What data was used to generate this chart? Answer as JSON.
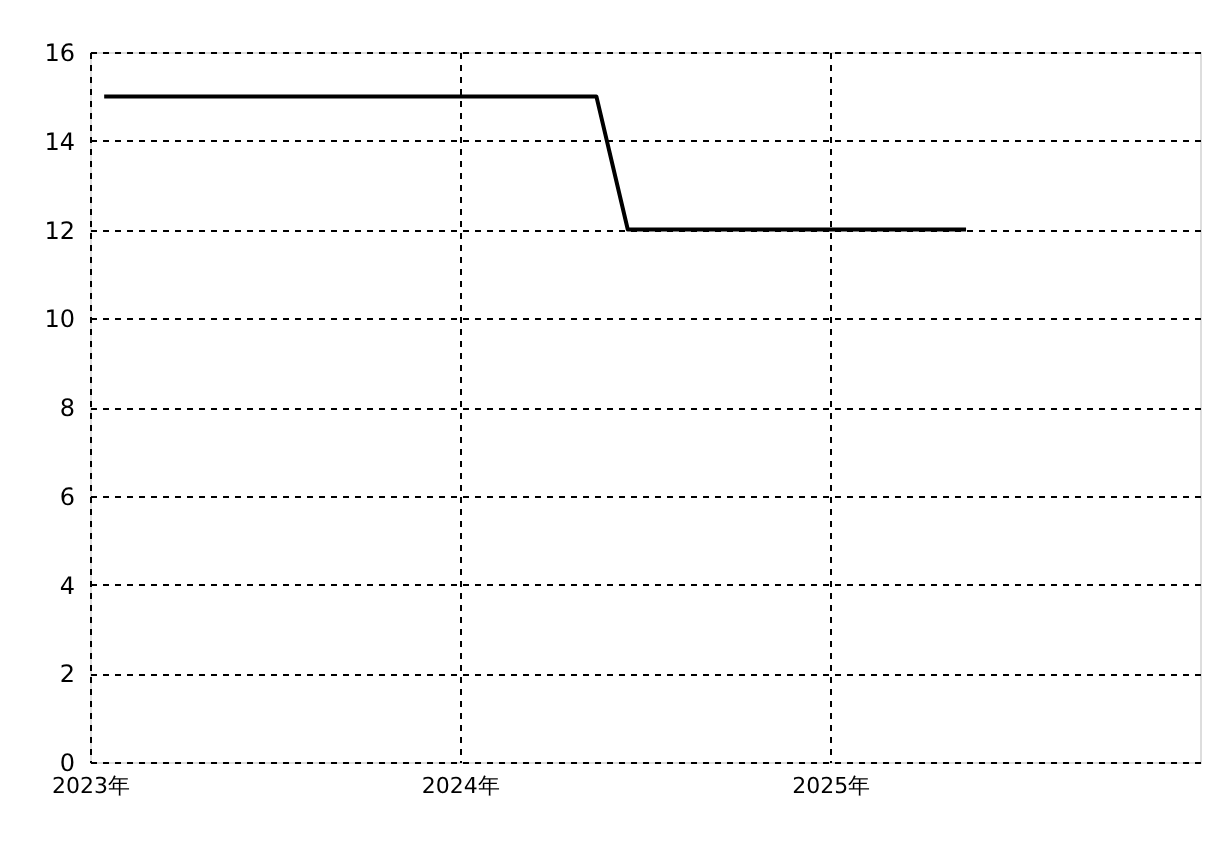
{
  "chart_data": {
    "type": "line",
    "x": [
      "2023-01-15",
      "2024-05-15",
      "2024-06-15",
      "2025-05-15"
    ],
    "series": [
      {
        "color": "#000000",
        "values": [
          15,
          15,
          12,
          12
        ]
      }
    ],
    "xlim": [
      "2023-01-01",
      "2026-01-01"
    ],
    "xticks": [
      {
        "value": "2023-01-01",
        "label": "2023年"
      },
      {
        "value": "2024-01-01",
        "label": "2024年"
      },
      {
        "value": "2025-01-01",
        "label": "2025年"
      }
    ],
    "ylim": [
      0,
      16
    ],
    "yticks": [
      0,
      2,
      4,
      6,
      8,
      10,
      12,
      14,
      16
    ],
    "grid": true,
    "marker": "none",
    "line_style": "solid"
  }
}
